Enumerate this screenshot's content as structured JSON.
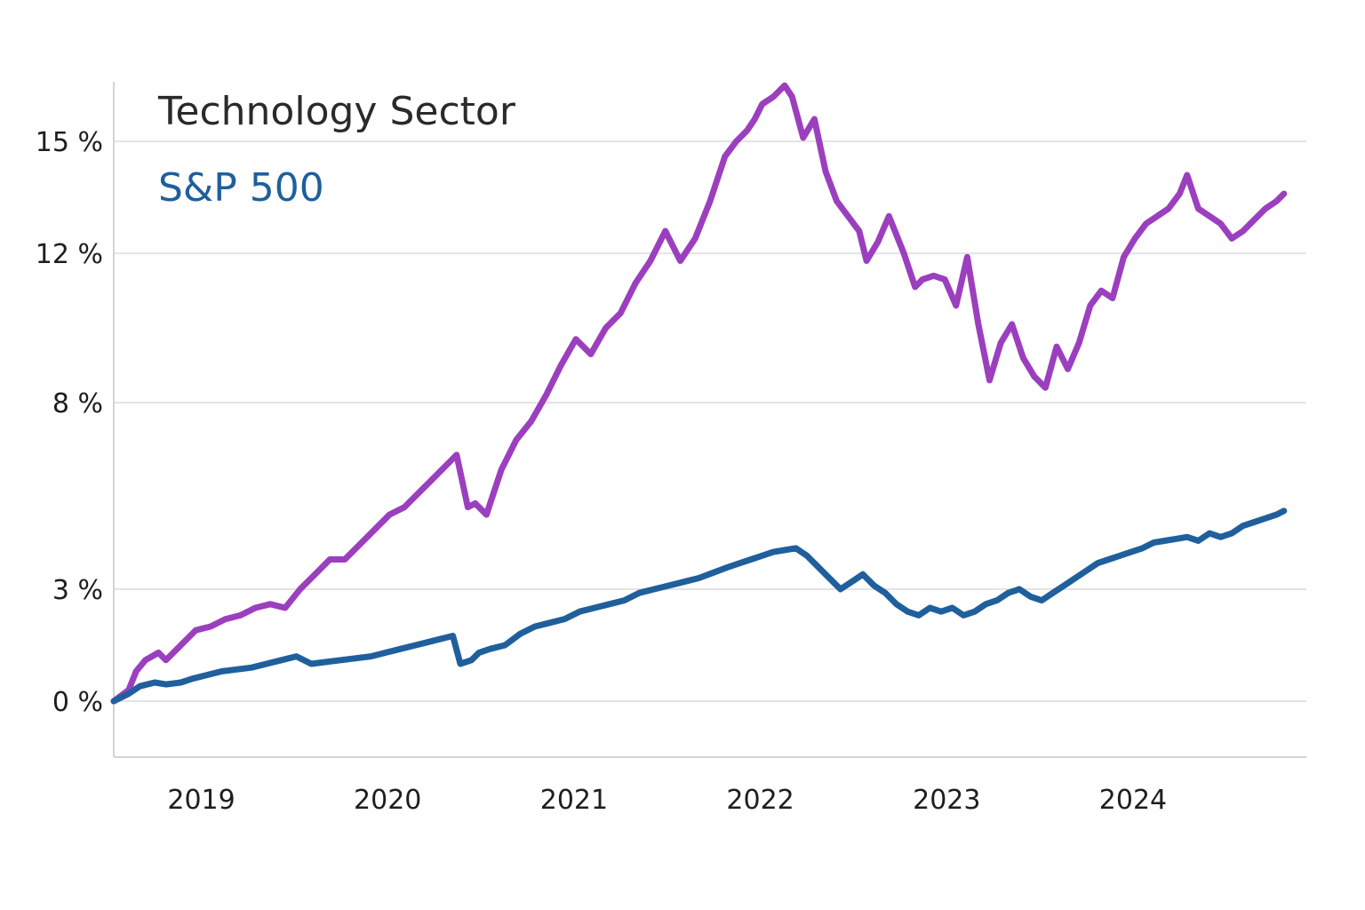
{
  "chart_data": {
    "type": "line",
    "title": "",
    "xlabel": "",
    "ylabel": "",
    "xlim": [
      2018.38,
      2024.78
    ],
    "ylim": [
      -1.5,
      16.6
    ],
    "grid": true,
    "x_ticks": [
      {
        "value": 2018.85,
        "label": "2019"
      },
      {
        "value": 2019.85,
        "label": "2020"
      },
      {
        "value": 2020.85,
        "label": "2021"
      },
      {
        "value": 2021.85,
        "label": "2022"
      },
      {
        "value": 2022.85,
        "label": "2023"
      },
      {
        "value": 2023.85,
        "label": "2024"
      }
    ],
    "y_ticks": [
      {
        "value": 0,
        "label": "0 %"
      },
      {
        "value": 3,
        "label": "3 %"
      },
      {
        "value": 8,
        "label": "8 %"
      },
      {
        "value": 12,
        "label": "12 %"
      },
      {
        "value": 15,
        "label": "15 %"
      }
    ],
    "series": [
      {
        "name": "Technology Sector",
        "color": "#9b3fbf",
        "x": [
          2018.38,
          2018.46,
          2018.5,
          2018.55,
          2018.62,
          2018.66,
          2018.74,
          2018.82,
          2018.9,
          2018.98,
          2019.06,
          2019.14,
          2019.22,
          2019.3,
          2019.38,
          2019.46,
          2019.54,
          2019.62,
          2019.7,
          2019.78,
          2019.86,
          2019.94,
          2020.02,
          2020.1,
          2020.18,
          2020.22,
          2020.28,
          2020.32,
          2020.38,
          2020.46,
          2020.54,
          2020.62,
          2020.7,
          2020.78,
          2020.86,
          2020.94,
          2021.02,
          2021.1,
          2021.18,
          2021.26,
          2021.34,
          2021.42,
          2021.5,
          2021.58,
          2021.62,
          2021.66,
          2021.72,
          2021.78,
          2021.82,
          2021.86,
          2021.92,
          2021.98,
          2022.02,
          2022.08,
          2022.14,
          2022.2,
          2022.26,
          2022.32,
          2022.38,
          2022.42,
          2022.48,
          2022.54,
          2022.58,
          2022.62,
          2022.68,
          2022.72,
          2022.78,
          2022.84,
          2022.9,
          2022.96,
          2023.02,
          2023.08,
          2023.14,
          2023.2,
          2023.26,
          2023.32,
          2023.38,
          2023.44,
          2023.5,
          2023.56,
          2023.62,
          2023.68,
          2023.74,
          2023.8,
          2023.86,
          2023.92,
          2023.98,
          2024.04,
          2024.1,
          2024.14,
          2024.2,
          2024.26,
          2024.32,
          2024.38,
          2024.44,
          2024.5,
          2024.56,
          2024.62,
          2024.66
        ],
        "y": [
          0.0,
          0.3,
          0.8,
          1.1,
          1.3,
          1.1,
          1.5,
          1.9,
          2.0,
          2.2,
          2.3,
          2.5,
          2.6,
          2.5,
          3.0,
          3.4,
          3.8,
          3.8,
          4.2,
          4.6,
          5.0,
          5.2,
          5.6,
          6.0,
          6.4,
          6.6,
          5.2,
          5.3,
          5.0,
          6.2,
          7.0,
          7.5,
          8.2,
          9.0,
          9.7,
          9.3,
          10.0,
          10.4,
          11.2,
          11.8,
          12.6,
          11.8,
          12.4,
          13.4,
          14.0,
          14.6,
          15.0,
          15.3,
          15.6,
          16.0,
          16.2,
          16.5,
          16.2,
          15.1,
          15.6,
          14.2,
          13.4,
          13.0,
          12.6,
          11.8,
          12.3,
          13.0,
          12.5,
          12.0,
          11.1,
          11.3,
          11.4,
          11.3,
          10.6,
          11.9,
          10.1,
          8.6,
          9.6,
          10.1,
          9.2,
          8.7,
          8.4,
          9.5,
          8.9,
          9.6,
          10.6,
          11.0,
          10.8,
          11.9,
          12.4,
          12.8,
          13.0,
          13.2,
          13.6,
          14.1,
          13.2,
          13.0,
          12.8,
          12.4,
          12.6,
          12.9,
          13.2,
          13.4,
          13.6
        ]
      },
      {
        "name": "S&P 500",
        "color": "#1f5f9c",
        "x": [
          2018.38,
          2018.46,
          2018.52,
          2018.6,
          2018.66,
          2018.74,
          2018.8,
          2018.88,
          2018.96,
          2019.04,
          2019.12,
          2019.2,
          2019.28,
          2019.36,
          2019.44,
          2019.52,
          2019.6,
          2019.68,
          2019.76,
          2019.84,
          2019.92,
          2020.0,
          2020.08,
          2020.16,
          2020.2,
          2020.24,
          2020.3,
          2020.34,
          2020.4,
          2020.48,
          2020.56,
          2020.64,
          2020.72,
          2020.8,
          2020.88,
          2020.96,
          2021.04,
          2021.12,
          2021.2,
          2021.28,
          2021.36,
          2021.44,
          2021.52,
          2021.6,
          2021.68,
          2021.74,
          2021.8,
          2021.86,
          2021.92,
          2021.98,
          2022.04,
          2022.1,
          2022.16,
          2022.22,
          2022.28,
          2022.34,
          2022.4,
          2022.46,
          2022.52,
          2022.58,
          2022.64,
          2022.7,
          2022.76,
          2022.82,
          2022.88,
          2022.94,
          2023.0,
          2023.06,
          2023.12,
          2023.18,
          2023.24,
          2023.3,
          2023.36,
          2023.42,
          2023.48,
          2023.54,
          2023.6,
          2023.66,
          2023.72,
          2023.78,
          2023.84,
          2023.9,
          2023.96,
          2024.02,
          2024.08,
          2024.14,
          2024.2,
          2024.26,
          2024.32,
          2024.38,
          2024.44,
          2024.5,
          2024.56,
          2024.62,
          2024.66
        ],
        "y": [
          0.0,
          0.2,
          0.4,
          0.5,
          0.45,
          0.5,
          0.6,
          0.7,
          0.8,
          0.85,
          0.9,
          1.0,
          1.1,
          1.2,
          1.0,
          1.05,
          1.1,
          1.15,
          1.2,
          1.3,
          1.4,
          1.5,
          1.6,
          1.7,
          1.75,
          1.0,
          1.1,
          1.3,
          1.4,
          1.5,
          1.8,
          2.0,
          2.1,
          2.2,
          2.4,
          2.5,
          2.6,
          2.7,
          2.9,
          3.0,
          3.1,
          3.2,
          3.3,
          3.45,
          3.6,
          3.7,
          3.8,
          3.9,
          4.0,
          4.05,
          4.1,
          3.9,
          3.6,
          3.3,
          3.0,
          3.2,
          3.4,
          3.1,
          2.9,
          2.6,
          2.4,
          2.3,
          2.5,
          2.4,
          2.5,
          2.3,
          2.4,
          2.6,
          2.7,
          2.9,
          3.0,
          2.8,
          2.7,
          2.9,
          3.1,
          3.3,
          3.5,
          3.7,
          3.8,
          3.9,
          4.0,
          4.1,
          4.25,
          4.3,
          4.35,
          4.4,
          4.3,
          4.5,
          4.4,
          4.5,
          4.7,
          4.8,
          4.9,
          5.0,
          5.1
        ]
      }
    ]
  }
}
